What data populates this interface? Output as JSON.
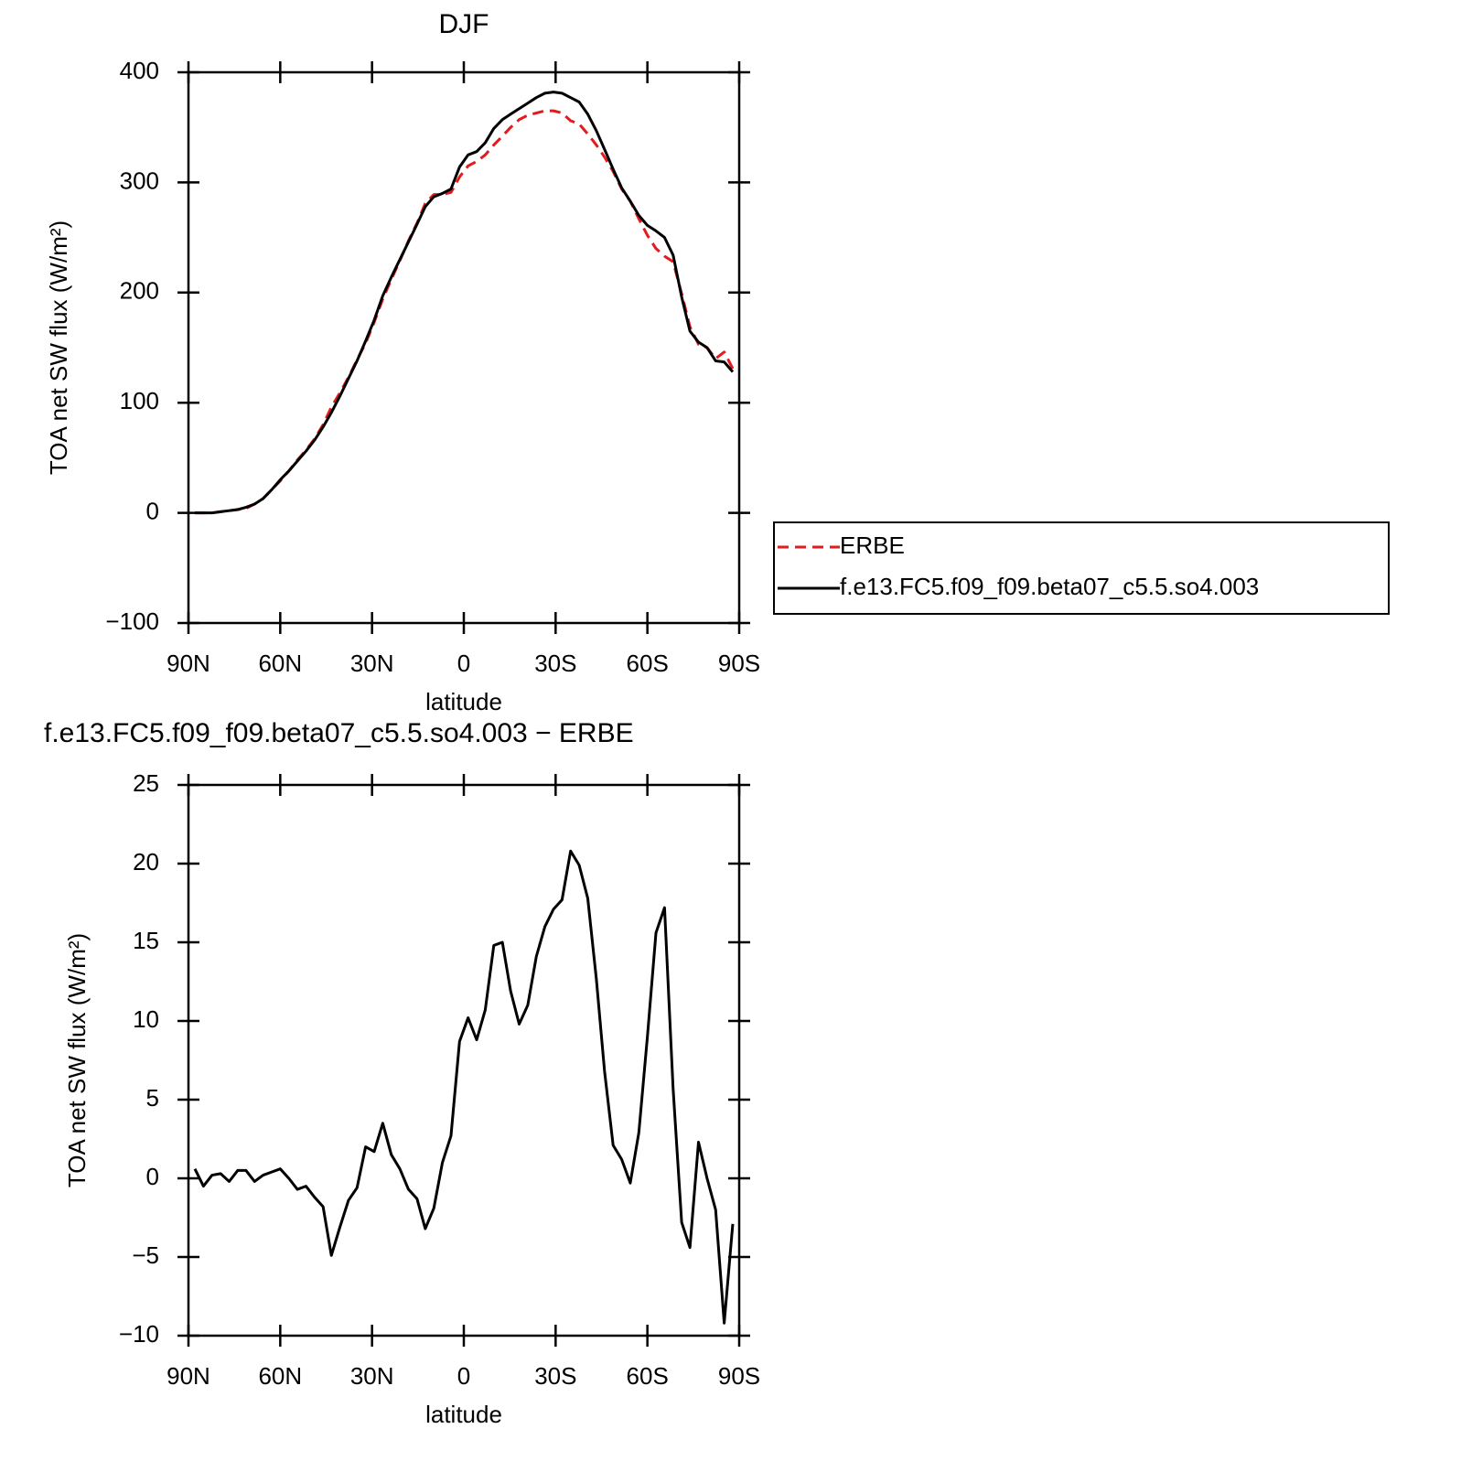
{
  "chart_data": [
    {
      "type": "line",
      "title": "DJF",
      "xlabel": "latitude",
      "ylabel": "TOA net SW flux (W/m²)",
      "x": [
        87.9,
        85.1,
        82.3,
        79.5,
        76.7,
        73.9,
        71.2,
        68.4,
        65.6,
        62.8,
        60.0,
        57.2,
        54.4,
        51.6,
        48.8,
        46.0,
        43.3,
        40.5,
        37.7,
        34.9,
        32.1,
        29.3,
        26.5,
        23.7,
        20.9,
        18.1,
        15.3,
        12.6,
        9.8,
        7.0,
        4.2,
        1.4,
        -1.4,
        -4.2,
        -7.0,
        -9.8,
        -12.6,
        -15.3,
        -18.1,
        -20.9,
        -23.7,
        -26.5,
        -29.3,
        -32.1,
        -34.9,
        -37.7,
        -40.5,
        -43.3,
        -46.0,
        -48.8,
        -51.6,
        -54.4,
        -57.2,
        -60.0,
        -62.8,
        -65.6,
        -68.4,
        -71.2,
        -73.9,
        -76.7,
        -79.5,
        -82.3,
        -85.1,
        -87.9
      ],
      "series": [
        {
          "name": "ERBE",
          "color": "#e41a1c",
          "linestyle": "dashed",
          "values": [
            0,
            0,
            0,
            1,
            2,
            3,
            4,
            8,
            13,
            21,
            29,
            38,
            48,
            57,
            67,
            80,
            96,
            109,
            123,
            139,
            154,
            173,
            194,
            212,
            229,
            247,
            263,
            281,
            289,
            289,
            291,
            305,
            315,
            319,
            325,
            334,
            342,
            350,
            357,
            361,
            363,
            365,
            365,
            363,
            356,
            353,
            344,
            334,
            323,
            310,
            294,
            283,
            267,
            252,
            240,
            233,
            228,
            199,
            169,
            153,
            150,
            140,
            146,
            131
          ]
        },
        {
          "name": "f.e13.FC5.f09_f09.beta07_c5.5.so4.003",
          "color": "#000000",
          "linestyle": "solid",
          "values": [
            0,
            0,
            0,
            1,
            2,
            3,
            5,
            8,
            13,
            21,
            30,
            38,
            47,
            56,
            66,
            78,
            91,
            106,
            122,
            138,
            156,
            175,
            197,
            214,
            230,
            246,
            262,
            278,
            287,
            290,
            294,
            314,
            325,
            328,
            336,
            349,
            357,
            362,
            367,
            372,
            377,
            381,
            382,
            381,
            377,
            373,
            362,
            347,
            330,
            312,
            295,
            283,
            270,
            261,
            256,
            250,
            234,
            196,
            165,
            155,
            150,
            138,
            137,
            128
          ]
        }
      ],
      "xlim": [
        90,
        -90
      ],
      "xticks": [
        {
          "value": 90,
          "label": "90N"
        },
        {
          "value": 60,
          "label": "60N"
        },
        {
          "value": 30,
          "label": "30N"
        },
        0,
        {
          "value": -30,
          "label": "30S"
        },
        {
          "value": -60,
          "label": "60S"
        },
        {
          "value": -90,
          "label": "90S"
        }
      ],
      "ylim": [
        -100,
        400
      ],
      "yticks": [
        {
          "value": -100,
          "label": "−100"
        },
        0,
        100,
        200,
        300,
        400
      ],
      "legend": "outside-right"
    },
    {
      "type": "line",
      "title": "f.e13.FC5.f09_f09.beta07_c5.5.so4.003 − ERBE",
      "xlabel": "latitude",
      "ylabel": "TOA net SW flux (W/m²)",
      "x": [
        87.9,
        85.1,
        82.3,
        79.5,
        76.7,
        73.9,
        71.2,
        68.4,
        65.6,
        62.8,
        60.0,
        57.2,
        54.4,
        51.6,
        48.8,
        46.0,
        43.3,
        40.5,
        37.7,
        34.9,
        32.1,
        29.3,
        26.5,
        23.7,
        20.9,
        18.1,
        15.3,
        12.6,
        9.8,
        7.0,
        4.2,
        1.4,
        -1.4,
        -4.2,
        -7.0,
        -9.8,
        -12.6,
        -15.3,
        -18.1,
        -20.9,
        -23.7,
        -26.5,
        -29.3,
        -32.1,
        -34.9,
        -37.7,
        -40.5,
        -43.3,
        -46.0,
        -48.8,
        -51.6,
        -54.4,
        -57.2,
        -60.0,
        -62.8,
        -65.6,
        -68.4,
        -71.2,
        -73.9,
        -76.7,
        -79.5,
        -82.3,
        -85.1,
        -87.9
      ],
      "values": [
        0.6,
        -0.5,
        0.2,
        0.3,
        -0.2,
        0.5,
        0.5,
        -0.2,
        0.2,
        0.4,
        0.6,
        0.0,
        -0.7,
        -0.5,
        -1.2,
        -1.8,
        -4.9,
        -3.1,
        -1.4,
        -0.6,
        2.0,
        1.7,
        3.5,
        1.5,
        0.6,
        -0.7,
        -1.3,
        -3.2,
        -1.9,
        1.0,
        2.7,
        8.7,
        10.2,
        8.8,
        10.7,
        14.8,
        15.0,
        11.9,
        9.8,
        11.0,
        14.1,
        16.0,
        17.1,
        17.7,
        20.8,
        19.9,
        17.8,
        12.7,
        6.8,
        2.1,
        1.2,
        -0.3,
        2.9,
        9.0,
        15.6,
        17.2,
        5.7,
        -2.8,
        -4.4,
        2.3,
        0.0,
        -2.0,
        -9.2,
        -2.9
      ],
      "color": "#000000",
      "xlim": [
        90,
        -90
      ],
      "xticks": [
        {
          "value": 90,
          "label": "90N"
        },
        {
          "value": 60,
          "label": "60N"
        },
        {
          "value": 30,
          "label": "30N"
        },
        0,
        {
          "value": -30,
          "label": "30S"
        },
        {
          "value": -60,
          "label": "60S"
        },
        {
          "value": -90,
          "label": "90S"
        }
      ],
      "ylim": [
        -10,
        25
      ],
      "yticks": [
        {
          "value": -10,
          "label": "−10"
        },
        {
          "value": -5,
          "label": "−5"
        },
        0,
        5,
        10,
        15,
        20,
        25
      ]
    }
  ]
}
